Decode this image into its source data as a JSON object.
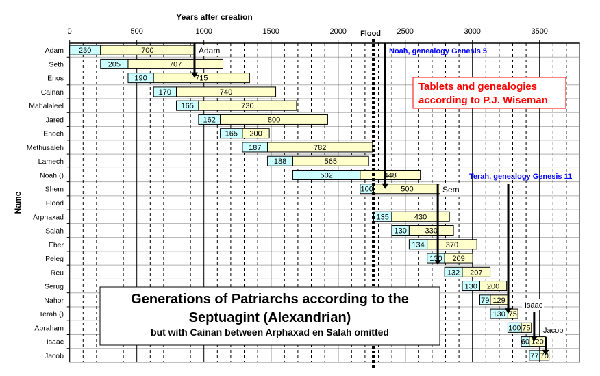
{
  "chart_data": {
    "type": "bar",
    "subtype": "stacked-horizontal-timeline",
    "xlabel": "Years after creation",
    "ylabel": "Name",
    "xlim": [
      0,
      3800
    ],
    "xticks": [
      0,
      500,
      1000,
      1500,
      2000,
      2500,
      3000,
      3500
    ],
    "grid": true,
    "colors": {
      "before_son": "#ccffff",
      "after_son": "#ffffcc",
      "annotation_blue": "#0000ff",
      "annotation_red": "#ff0000"
    },
    "rows": [
      {
        "name": "Adam",
        "start": 0,
        "before_son": 230,
        "after_son": 700
      },
      {
        "name": "Seth",
        "start": 230,
        "before_son": 205,
        "after_son": 707
      },
      {
        "name": "Enos",
        "start": 435,
        "before_son": 190,
        "after_son": 715
      },
      {
        "name": "Cainan",
        "start": 625,
        "before_son": 170,
        "after_son": 740
      },
      {
        "name": "Mahalaleel",
        "start": 795,
        "before_son": 165,
        "after_son": 730
      },
      {
        "name": "Jared",
        "start": 960,
        "before_son": 162,
        "after_son": 800
      },
      {
        "name": "Enoch",
        "start": 1122,
        "before_son": 165,
        "after_son": 200
      },
      {
        "name": "Methusaleh",
        "start": 1287,
        "before_son": 187,
        "after_son": 782
      },
      {
        "name": "Lamech",
        "start": 1474,
        "before_son": 188,
        "after_son": 565
      },
      {
        "name": "Noah ()",
        "start": 1662,
        "before_son": 502,
        "after_son": 448
      },
      {
        "name": "Shem",
        "start": 2164,
        "before_son": 100,
        "after_son": 500
      },
      {
        "name": "Flood",
        "start": null,
        "before_son": null,
        "after_son": null
      },
      {
        "name": "Arphaxad",
        "start": 2264,
        "before_son": 135,
        "after_son": 430
      },
      {
        "name": "Salah",
        "start": 2399,
        "before_son": 130,
        "after_son": 330
      },
      {
        "name": "Eber",
        "start": 2529,
        "before_son": 134,
        "after_son": 370
      },
      {
        "name": "Peleg",
        "start": 2663,
        "before_son": 130,
        "after_son": 209
      },
      {
        "name": "Reu",
        "start": 2793,
        "before_son": 132,
        "after_son": 207
      },
      {
        "name": "Serug",
        "start": 2925,
        "before_son": 130,
        "after_son": 200
      },
      {
        "name": "Nahor",
        "start": 3055,
        "before_son": 79,
        "after_son": 129
      },
      {
        "name": "Terah ()",
        "start": 3134,
        "before_son": 130,
        "after_son": 75
      },
      {
        "name": "Abraham",
        "start": 3264,
        "before_son": 100,
        "after_son": 75
      },
      {
        "name": "Isaac",
        "start": 3364,
        "before_son": 60,
        "after_son": 120
      },
      {
        "name": "Jacob",
        "start": 3424,
        "before_son": 77,
        "after_son": 70
      }
    ],
    "flood": {
      "label": "Flood",
      "year": 2262
    },
    "arrows": [
      {
        "label": "Adam",
        "year": 930,
        "from_row": "top",
        "to_row": "Enos",
        "color": "#000000"
      },
      {
        "label": "Noah, genealogy Genesis 5",
        "year": 2350,
        "from_row": "top",
        "to_row": "Shem",
        "color": "#0000ff"
      },
      {
        "label": "Sem",
        "year": 2742,
        "from_row": "Shem",
        "to_row": "Peleg",
        "color": "#000000"
      },
      {
        "label": "Terah, genealogy Genesis 11",
        "year": 3267,
        "from_row": "Shem",
        "to_row": "Terah ()",
        "color": "#0000ff"
      },
      {
        "label": "Isaac",
        "year": 3460,
        "from_row": "Abraham",
        "to_row": "Isaac",
        "color": "#000000"
      },
      {
        "label": "Jacob",
        "year": 3545,
        "from_row": "Isaac",
        "to_row": "Jacob",
        "color": "#000000"
      }
    ],
    "note_box": {
      "line1": "Tablets and genealogies",
      "line2": "according to P.J. Wiseman"
    },
    "title_box": {
      "line1": "Generations of Patriarchs according to the",
      "line2": "Septuagint (Alexandrian)",
      "line3": "but with Cainan between Arphaxad en Salah omitted"
    }
  }
}
